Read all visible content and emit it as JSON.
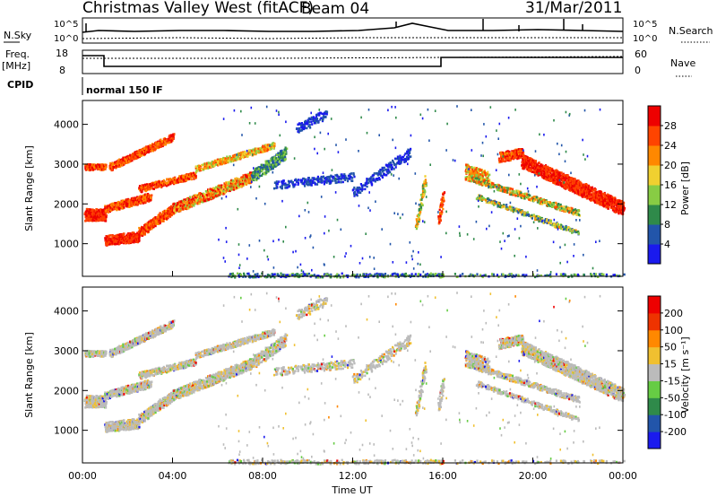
{
  "header": {
    "title": "Christmas Valley West (fitACF)",
    "beam": "Beam 04",
    "date": "31/Mar/2011"
  },
  "top_panels": {
    "nsky_label": "N.Sky",
    "nsearch_label": "N.Search",
    "nsky_ticks": [
      "10^5",
      "10^0"
    ],
    "nsearch_ticks": [
      "10^5",
      "10^0"
    ],
    "freq_label": "Freq.",
    "freq_unit": "[MHz]",
    "freq_ticks": [
      "18",
      "8"
    ],
    "nave_label": "Nave",
    "nave_ticks": [
      "60",
      "0"
    ],
    "cpid_label": "CPID",
    "cpid_value": "normal 150 IF"
  },
  "chart_data": [
    {
      "type": "heatmap",
      "quantity": "Power",
      "ylabel": "Slant Range [km]",
      "yticks": [
        "1000",
        "2000",
        "3000",
        "4000"
      ],
      "ylim": [
        180,
        4600
      ],
      "colorbar_label": "Power [dB]",
      "colorbar_ticks": [
        "4",
        "8",
        "12",
        "16",
        "20",
        "24",
        "28"
      ],
      "colors": [
        "#1a1aee",
        "#2255aa",
        "#2f8a4a",
        "#88cc44",
        "#f0d030",
        "#ff8800",
        "#ff4400",
        "#ee0000"
      ]
    },
    {
      "type": "heatmap",
      "quantity": "Velocity",
      "ylabel": "Slant Range [km]",
      "yticks": [
        "1000",
        "2000",
        "3000",
        "4000"
      ],
      "ylim": [
        180,
        4600
      ],
      "colorbar_label": "Velocity [m s⁻¹]",
      "colorbar_ticks": [
        "200",
        "100",
        "50",
        "15",
        "-15",
        "-50",
        "-100",
        "-200"
      ],
      "colors": [
        "#1a1aee",
        "#2255aa",
        "#2f8a4a",
        "#66cc44",
        "#bbbbbb",
        "#f0c030",
        "#ff8800",
        "#ee3300",
        "#ee0000"
      ],
      "xlabel": "Time UT",
      "xticks": [
        "00:00",
        "04:00",
        "08:00",
        "12:00",
        "16:00",
        "20:00",
        "00:00"
      ]
    }
  ]
}
